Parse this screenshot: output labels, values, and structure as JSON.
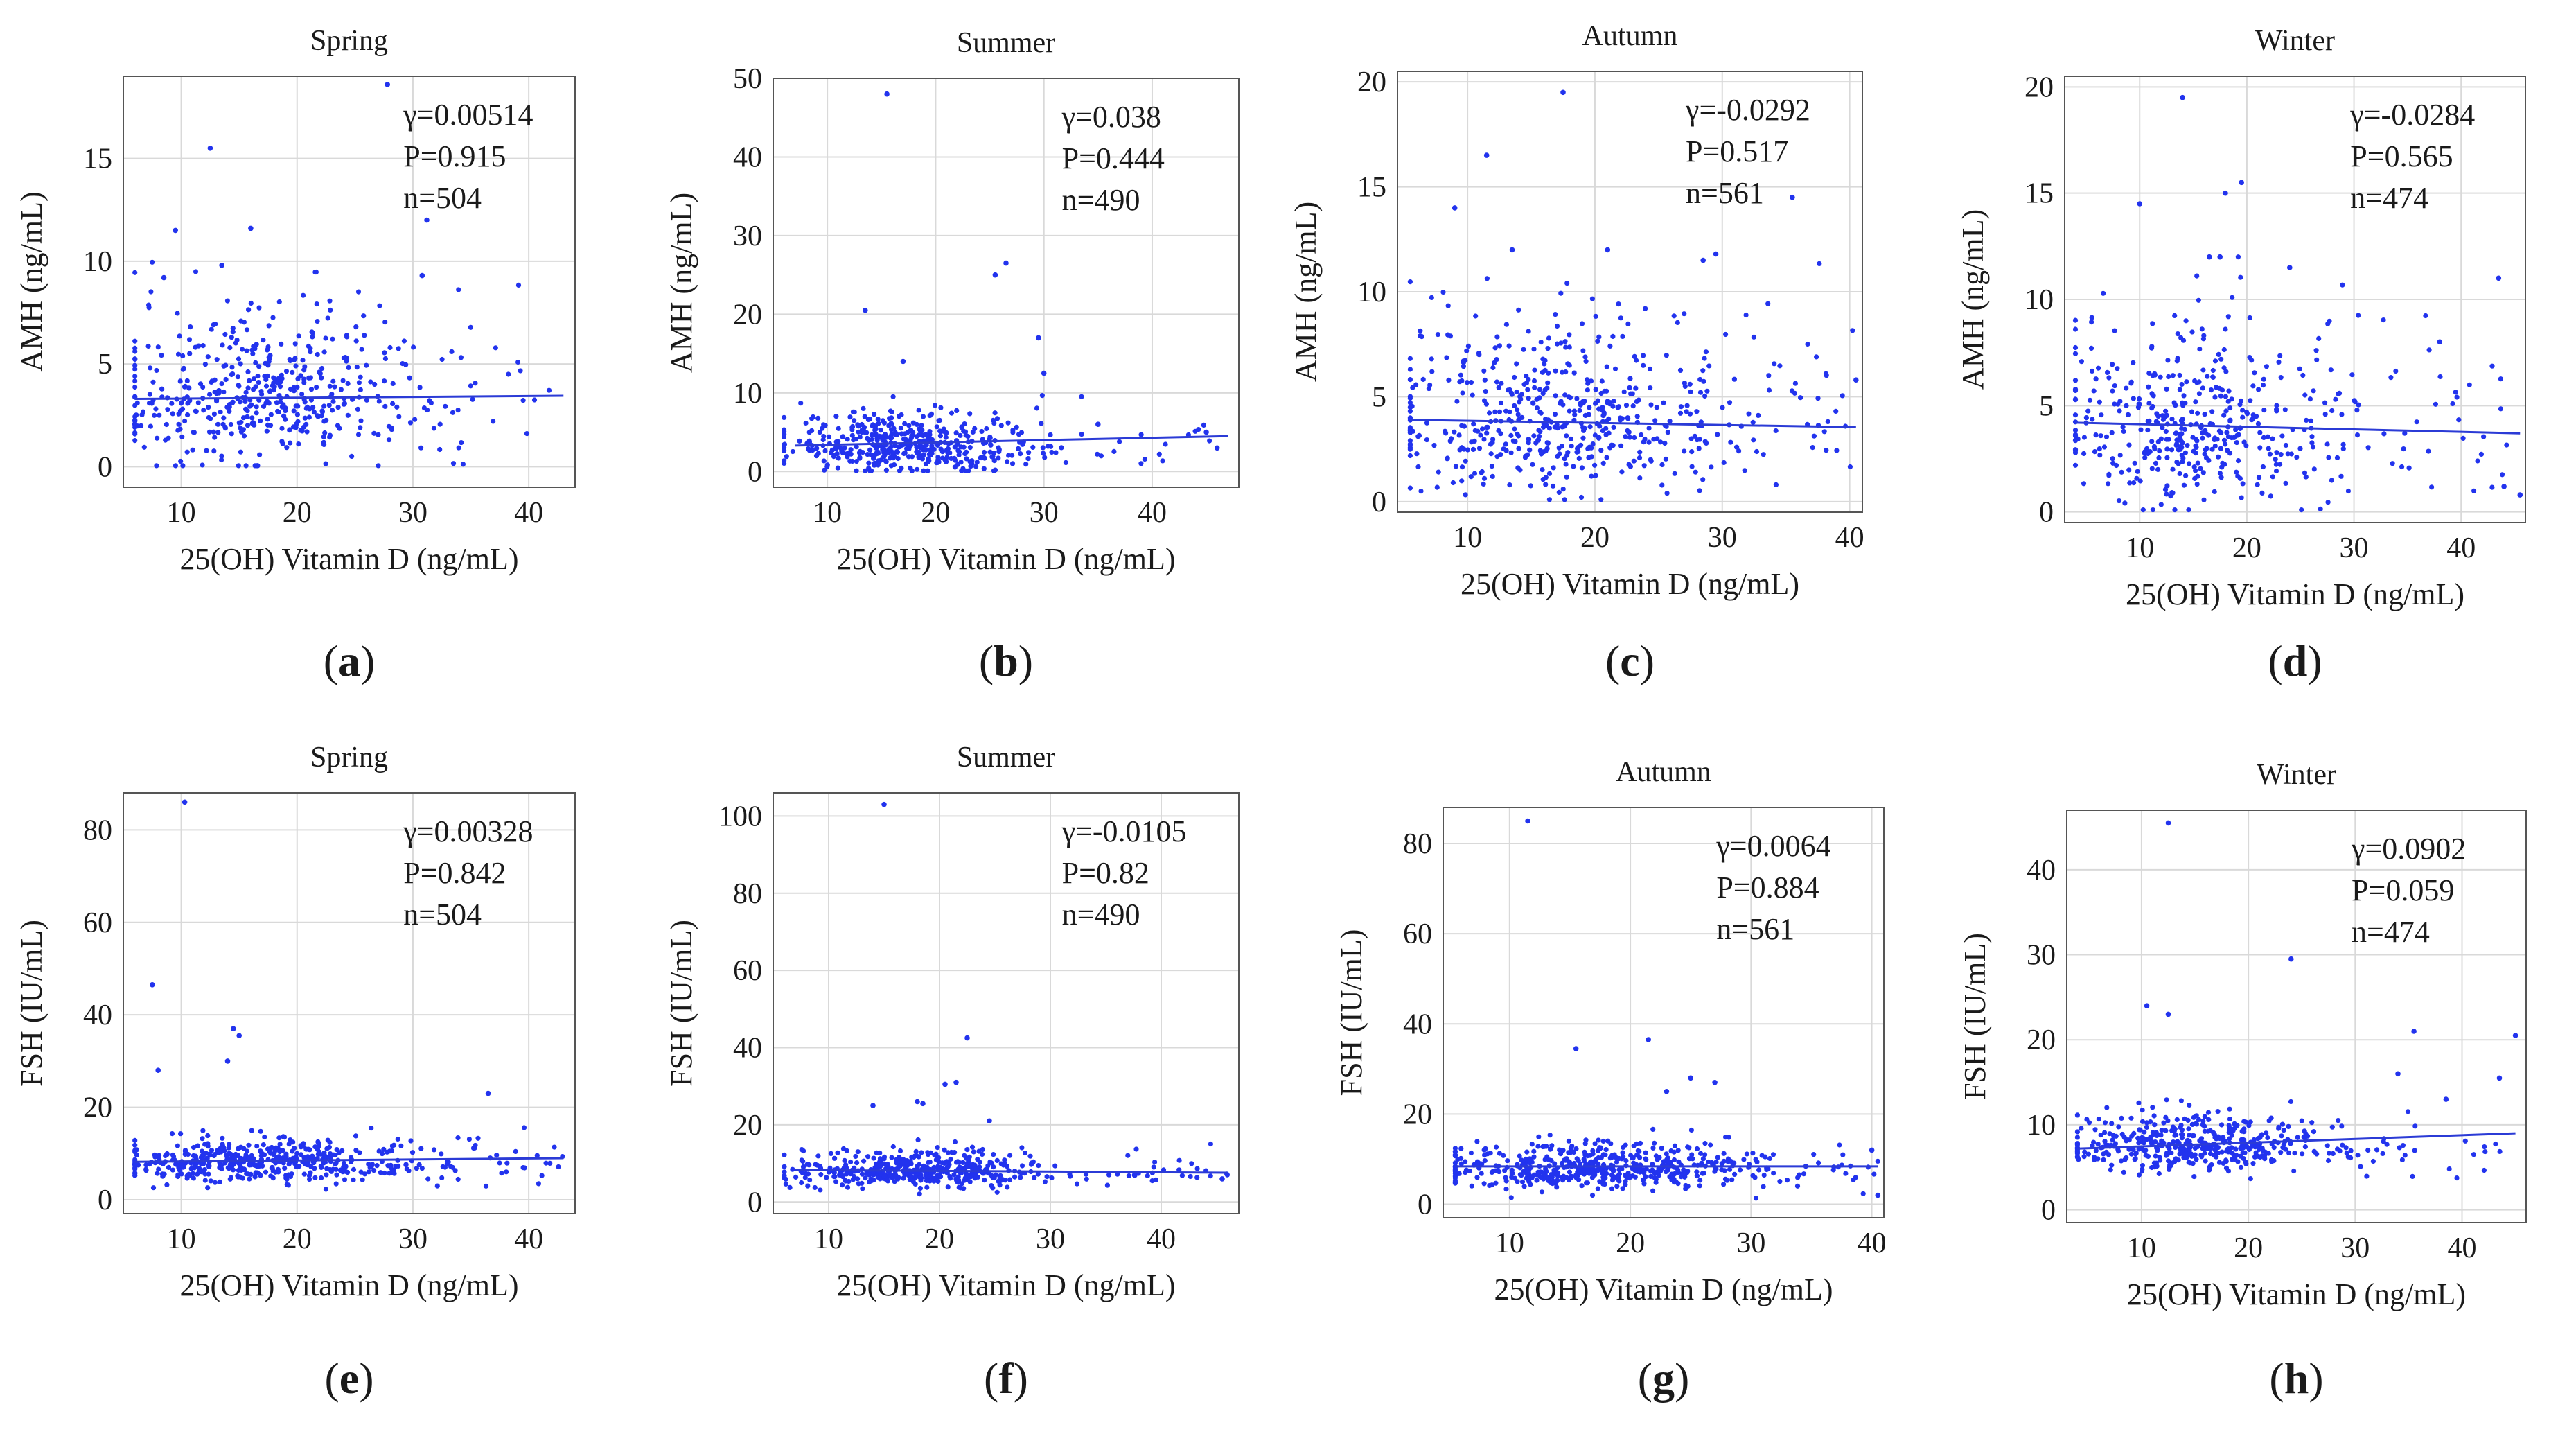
{
  "figure": {
    "panels_count": 8
  },
  "chart_data": [
    {
      "panel": "a",
      "type": "scatter",
      "title": "Spring",
      "xlabel": "25(OH) Vitamin D (ng/mL)",
      "ylabel": "AMH (ng/mL)",
      "xlim": [
        5,
        44
      ],
      "ylim": [
        -1,
        19
      ],
      "xticks": [
        10,
        20,
        30,
        40
      ],
      "yticks": [
        0,
        5,
        10,
        15
      ],
      "stats": [
        "γ=0.00514",
        "P=0.915",
        "n=504"
      ],
      "n_points": 504,
      "trend": {
        "x": [
          6,
          43
        ],
        "y": [
          3.3,
          3.45
        ]
      },
      "distribution": {
        "x_mean": 17,
        "x_sd": 6.5,
        "x_min": 6,
        "x_max": 43,
        "y_mean": 3.4,
        "y_sd": 2.2,
        "y_min": 0.05,
        "y_max": 10
      },
      "outliers": [
        [
          27.8,
          18.6
        ],
        [
          12.5,
          15.5
        ],
        [
          31.2,
          12
        ],
        [
          9.5,
          11.5
        ],
        [
          16,
          11.6
        ],
        [
          30.8,
          9.3
        ],
        [
          8.5,
          9.2
        ],
        [
          13.5,
          9.8
        ]
      ]
    },
    {
      "panel": "b",
      "type": "scatter",
      "title": "Summer",
      "xlabel": "25(OH) Vitamin D (ng/mL)",
      "ylabel": "AMH (ng/mL)",
      "xlim": [
        5,
        48
      ],
      "ylim": [
        -2,
        50
      ],
      "xticks": [
        10,
        20,
        30,
        40
      ],
      "yticks": [
        0,
        10,
        20,
        30,
        40,
        50
      ],
      "stats": [
        "γ=0.038",
        "P=0.444",
        "n=490"
      ],
      "n_points": 490,
      "trend": {
        "x": [
          7,
          47
        ],
        "y": [
          3.3,
          4.5
        ]
      },
      "distribution": {
        "x_mean": 17,
        "x_sd": 5.5,
        "x_min": 6,
        "x_max": 47,
        "y_mean": 3.2,
        "y_sd": 2.3,
        "y_min": 0.1,
        "y_max": 12
      },
      "outliers": [
        [
          15.5,
          48
        ],
        [
          26.5,
          26.5
        ],
        [
          25.5,
          25
        ],
        [
          13.5,
          20.5
        ],
        [
          29.5,
          17
        ],
        [
          17,
          14
        ],
        [
          30,
          12.5
        ],
        [
          35,
          6
        ],
        [
          45,
          5
        ],
        [
          46,
          3
        ]
      ]
    },
    {
      "panel": "c",
      "type": "scatter",
      "title": "Autumn",
      "xlabel": "25(OH) Vitamin D (ng/mL)",
      "ylabel": "AMH (ng/mL)",
      "xlim": [
        4.5,
        41
      ],
      "ylim": [
        -0.5,
        20.5
      ],
      "xticks": [
        10,
        20,
        30,
        40
      ],
      "yticks": [
        0,
        5,
        10,
        15,
        20
      ],
      "stats": [
        "γ=-0.0292",
        "P=0.517",
        "n=561"
      ],
      "n_points": 561,
      "trend": {
        "x": [
          5.5,
          40.5
        ],
        "y": [
          3.9,
          3.55
        ]
      },
      "distribution": {
        "x_mean": 17,
        "x_sd": 6.5,
        "x_min": 5.5,
        "x_max": 40.5,
        "y_mean": 4,
        "y_sd": 2.6,
        "y_min": 0.1,
        "y_max": 12
      },
      "outliers": [
        [
          17.5,
          19.5
        ],
        [
          11.5,
          16.5
        ],
        [
          9,
          14
        ],
        [
          35.5,
          14.5
        ],
        [
          29.5,
          11.8
        ],
        [
          28.5,
          11.5
        ],
        [
          21,
          12
        ],
        [
          13.5,
          12
        ],
        [
          40.5,
          5.8
        ]
      ]
    },
    {
      "panel": "d",
      "type": "scatter",
      "title": "Winter",
      "xlabel": "25(OH) Vitamin D (ng/mL)",
      "ylabel": "AMH (ng/mL)",
      "xlim": [
        3,
        46
      ],
      "ylim": [
        -0.5,
        20.5
      ],
      "xticks": [
        10,
        20,
        30,
        40
      ],
      "yticks": [
        0,
        5,
        10,
        15,
        20
      ],
      "stats": [
        "γ=-0.0284",
        "P=0.565",
        "n=474"
      ],
      "n_points": 474,
      "trend": {
        "x": [
          4,
          45.5
        ],
        "y": [
          4.2,
          3.7
        ]
      },
      "distribution": {
        "x_mean": 15,
        "x_sd": 6.5,
        "x_min": 4,
        "x_max": 45,
        "y_mean": 4,
        "y_sd": 2.6,
        "y_min": 0.1,
        "y_max": 12
      },
      "outliers": [
        [
          14,
          19.5
        ],
        [
          19.5,
          15.5
        ],
        [
          10,
          14.5
        ],
        [
          18,
          15
        ],
        [
          43.5,
          11
        ],
        [
          16.5,
          12
        ],
        [
          17.5,
          12
        ],
        [
          24,
          11.5
        ],
        [
          38,
          8
        ],
        [
          44,
          1.2
        ],
        [
          45.5,
          0.8
        ]
      ]
    },
    {
      "panel": "e",
      "type": "scatter",
      "title": "Spring",
      "xlabel": "25(OH) Vitamin D (ng/mL)",
      "ylabel": "FSH (IU/mL)",
      "xlim": [
        5,
        44
      ],
      "ylim": [
        -3,
        88
      ],
      "xticks": [
        10,
        20,
        30,
        40
      ],
      "yticks": [
        0,
        20,
        40,
        60,
        80
      ],
      "stats": [
        "γ=0.00328",
        "P=0.842",
        "n=504"
      ],
      "n_points": 504,
      "trend": {
        "x": [
          6,
          43
        ],
        "y": [
          8.2,
          9.0
        ]
      },
      "distribution": {
        "x_mean": 17,
        "x_sd": 6.5,
        "x_min": 6,
        "x_max": 43,
        "y_mean": 8,
        "y_sd": 2.8,
        "y_min": 2,
        "y_max": 20
      },
      "outliers": [
        [
          10.3,
          86
        ],
        [
          7.5,
          46.5
        ],
        [
          14.5,
          37
        ],
        [
          15,
          35.5
        ],
        [
          14,
          30
        ],
        [
          8,
          28
        ],
        [
          36.5,
          23
        ]
      ]
    },
    {
      "panel": "f",
      "type": "scatter",
      "title": "Summer",
      "xlabel": "25(OH) Vitamin D (ng/mL)",
      "ylabel": "FSH (IU/mL)",
      "xlim": [
        5,
        47
      ],
      "ylim": [
        -3,
        106
      ],
      "xticks": [
        10,
        20,
        30,
        40
      ],
      "yticks": [
        0,
        20,
        40,
        60,
        80,
        100
      ],
      "stats": [
        "γ=-0.0105",
        "P=0.82",
        "n=490"
      ],
      "n_points": 490,
      "trend": {
        "x": [
          7,
          46
        ],
        "y": [
          8.3,
          7.6
        ]
      },
      "distribution": {
        "x_mean": 18,
        "x_sd": 5.5,
        "x_min": 6,
        "x_max": 46,
        "y_mean": 8,
        "y_sd": 2.8,
        "y_min": 2,
        "y_max": 20
      },
      "outliers": [
        [
          15,
          103
        ],
        [
          22.5,
          42.5
        ],
        [
          21.5,
          31
        ],
        [
          20.5,
          30.5
        ],
        [
          18,
          26
        ],
        [
          18.5,
          25.5
        ],
        [
          14,
          25
        ],
        [
          24.5,
          21
        ],
        [
          45.5,
          6
        ]
      ]
    },
    {
      "panel": "g",
      "type": "scatter",
      "title": "Autumn",
      "xlabel": "25(OH) Vitamin D (ng/mL)",
      "ylabel": "FSH (IU/mL)",
      "xlim": [
        4.5,
        41
      ],
      "ylim": [
        -3,
        88
      ],
      "xticks": [
        10,
        20,
        30,
        40
      ],
      "yticks": [
        0,
        20,
        40,
        60,
        80
      ],
      "stats": [
        "γ=0.0064",
        "P=0.884",
        "n=561"
      ],
      "n_points": 561,
      "trend": {
        "x": [
          5.5,
          40.5
        ],
        "y": [
          8.4,
          8.4
        ]
      },
      "distribution": {
        "x_mean": 17,
        "x_sd": 6.5,
        "x_min": 5.5,
        "x_max": 40.5,
        "y_mean": 8,
        "y_sd": 3,
        "y_min": 1,
        "y_max": 22
      },
      "outliers": [
        [
          11.5,
          85
        ],
        [
          21.5,
          36.5
        ],
        [
          15.5,
          34.5
        ],
        [
          25,
          28
        ],
        [
          27,
          27
        ],
        [
          23,
          25
        ],
        [
          40,
          12
        ],
        [
          40.5,
          2
        ]
      ]
    },
    {
      "panel": "h",
      "type": "scatter",
      "title": "Winter",
      "xlabel": "25(OH) Vitamin D (ng/mL)",
      "ylabel": "FSH (IU/mL)",
      "xlim": [
        3,
        46
      ],
      "ylim": [
        -1.5,
        47
      ],
      "xticks": [
        10,
        20,
        30,
        40
      ],
      "yticks": [
        0,
        10,
        20,
        30,
        40
      ],
      "stats": [
        "γ=0.0902",
        "P=0.059",
        "n=474"
      ],
      "n_points": 474,
      "trend": {
        "x": [
          4,
          45
        ],
        "y": [
          7.2,
          9.0
        ]
      },
      "distribution": {
        "x_mean": 15,
        "x_sd": 6.5,
        "x_min": 4,
        "x_max": 45,
        "y_mean": 7.5,
        "y_sd": 2,
        "y_min": 2,
        "y_max": 15
      },
      "outliers": [
        [
          12.5,
          45.5
        ],
        [
          24,
          29.5
        ],
        [
          10.5,
          24
        ],
        [
          12.5,
          23
        ],
        [
          35.5,
          21
        ],
        [
          45,
          20.5
        ],
        [
          43.5,
          15.5
        ],
        [
          34,
          16
        ],
        [
          38.5,
          13
        ]
      ]
    }
  ]
}
